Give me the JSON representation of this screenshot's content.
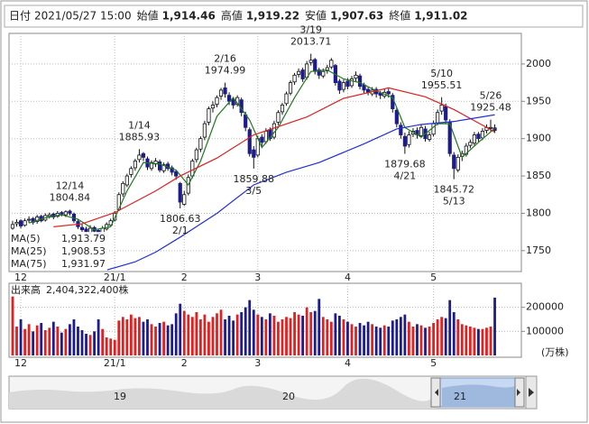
{
  "header": {
    "fields": [
      {
        "label": "日付",
        "value": "2021/05/27 15:00"
      },
      {
        "label": "始値",
        "value": "1,914.46"
      },
      {
        "label": "高値",
        "value": "1,919.22",
        "color": "#e00000"
      },
      {
        "label": "安値",
        "value": "1,907.63",
        "color": "#138a13"
      },
      {
        "label": "終値",
        "value": "1,911.02"
      }
    ]
  },
  "chart_data": [
    {
      "type": "candlestick",
      "ylim": [
        1722,
        2041
      ],
      "yticks": [
        1750,
        1800,
        1850,
        1900,
        1950,
        2000
      ],
      "grid": true,
      "up_color": "#ffffff",
      "down_color": "#1c1c8c",
      "legend": "bottom-left",
      "categories": [
        null,
        null,
        "12",
        null,
        null,
        null,
        null,
        null,
        null,
        null,
        null,
        null,
        null,
        null,
        null,
        null,
        null,
        null,
        null,
        null,
        null,
        null,
        null,
        null,
        null,
        "21/1",
        null,
        null,
        null,
        null,
        null,
        null,
        null,
        null,
        null,
        null,
        null,
        null,
        null,
        null,
        null,
        null,
        "2",
        null,
        null,
        null,
        null,
        null,
        null,
        null,
        null,
        null,
        null,
        null,
        null,
        null,
        null,
        null,
        null,
        null,
        "3",
        null,
        null,
        null,
        null,
        null,
        null,
        null,
        null,
        null,
        null,
        null,
        null,
        null,
        null,
        null,
        null,
        null,
        null,
        null,
        null,
        null,
        "4",
        null,
        null,
        null,
        null,
        null,
        null,
        null,
        null,
        null,
        null,
        null,
        null,
        null,
        null,
        null,
        null,
        null,
        null,
        null,
        null,
        "5",
        null,
        null,
        null,
        null,
        null,
        null,
        null,
        null,
        null,
        null,
        null,
        null,
        null,
        null,
        null
      ],
      "ohlc": [
        [
          1780,
          1790,
          1778,
          1785
        ],
        [
          1786,
          1792,
          1782,
          1788
        ],
        [
          1790,
          1792,
          1780,
          1783
        ],
        [
          1784,
          1793,
          1782,
          1790
        ],
        [
          1791,
          1796,
          1787,
          1792
        ],
        [
          1793,
          1795,
          1785,
          1788
        ],
        [
          1789,
          1798,
          1786,
          1795
        ],
        [
          1796,
          1798,
          1788,
          1790
        ],
        [
          1791,
          1800,
          1789,
          1797
        ],
        [
          1796,
          1801,
          1793,
          1798
        ],
        [
          1799,
          1801,
          1792,
          1795
        ],
        [
          1796,
          1803,
          1794,
          1800
        ],
        [
          1801,
          1803,
          1796,
          1799
        ],
        [
          1798,
          1804,
          1795,
          1802
        ],
        [
          1803,
          1804.84,
          1797,
          1800
        ],
        [
          1799,
          1801,
          1787,
          1790
        ],
        [
          1789,
          1792,
          1779,
          1782
        ],
        [
          1781,
          1786,
          1775,
          1778
        ],
        [
          1779,
          1782,
          1771,
          1775
        ],
        [
          1774,
          1784,
          1772,
          1780
        ],
        [
          1781,
          1783,
          1773,
          1776
        ],
        [
          1777,
          1779,
          1768,
          1772
        ],
        [
          1771,
          1783,
          1770,
          1780
        ],
        [
          1779,
          1788,
          1777,
          1785
        ],
        [
          1784,
          1793,
          1782,
          1790
        ],
        [
          1791,
          1803,
          1789,
          1800
        ],
        [
          1805,
          1828,
          1803,
          1825
        ],
        [
          1826,
          1843,
          1822,
          1840
        ],
        [
          1838,
          1853,
          1835,
          1850
        ],
        [
          1852,
          1863,
          1848,
          1860
        ],
        [
          1861,
          1873,
          1857,
          1870
        ],
        [
          1872,
          1885.93,
          1868,
          1878
        ],
        [
          1880,
          1882,
          1870,
          1875
        ],
        [
          1873,
          1876,
          1858,
          1862
        ],
        [
          1860,
          1871,
          1857,
          1868
        ],
        [
          1866,
          1874,
          1862,
          1870
        ],
        [
          1869,
          1872,
          1855,
          1858
        ],
        [
          1857,
          1868,
          1854,
          1865
        ],
        [
          1866,
          1869,
          1857,
          1860
        ],
        [
          1861,
          1864,
          1851,
          1855
        ],
        [
          1856,
          1858,
          1845,
          1850
        ],
        [
          1840,
          1842,
          1806.63,
          1815
        ],
        [
          1812,
          1830,
          1810,
          1825
        ],
        [
          1827,
          1852,
          1824,
          1848
        ],
        [
          1850,
          1873,
          1847,
          1870
        ],
        [
          1872,
          1888,
          1868,
          1885
        ],
        [
          1886,
          1903,
          1882,
          1900
        ],
        [
          1902,
          1924,
          1898,
          1920
        ],
        [
          1922,
          1943,
          1918,
          1940
        ],
        [
          1941,
          1950,
          1935,
          1945
        ],
        [
          1946,
          1958,
          1942,
          1955
        ],
        [
          1957,
          1968,
          1952,
          1965
        ],
        [
          1968,
          1974.99,
          1955,
          1960
        ],
        [
          1958,
          1962,
          1945,
          1950
        ],
        [
          1952,
          1956,
          1940,
          1945
        ],
        [
          1946,
          1958,
          1943,
          1955
        ],
        [
          1952,
          1955,
          1930,
          1935
        ],
        [
          1932,
          1936,
          1910,
          1915
        ],
        [
          1912,
          1915,
          1876,
          1880
        ],
        [
          1885,
          1890,
          1859.88,
          1875
        ],
        [
          1878,
          1904,
          1875,
          1900
        ],
        [
          1902,
          1906,
          1890,
          1895
        ],
        [
          1896,
          1914,
          1893,
          1910
        ],
        [
          1912,
          1915,
          1897,
          1900
        ],
        [
          1902,
          1924,
          1899,
          1920
        ],
        [
          1922,
          1938,
          1918,
          1935
        ],
        [
          1936,
          1948,
          1932,
          1945
        ],
        [
          1947,
          1963,
          1944,
          1960
        ],
        [
          1961,
          1978,
          1958,
          1975
        ],
        [
          1976,
          1988,
          1972,
          1985
        ],
        [
          1986,
          1994,
          1982,
          1990
        ],
        [
          1992,
          1995,
          1976,
          1980
        ],
        [
          1982,
          2004,
          1979,
          2000
        ],
        [
          2002,
          2013.71,
          1998,
          2005
        ],
        [
          2006,
          2008,
          1986,
          1990
        ],
        [
          1992,
          1995,
          1980,
          1985
        ],
        [
          1984,
          1994,
          1981,
          1990
        ],
        [
          1991,
          1999,
          1987,
          1995
        ],
        [
          1996,
          2008,
          1993,
          2005
        ],
        [
          1998,
          2000,
          1971,
          1975
        ],
        [
          1977,
          1980,
          1960,
          1965
        ],
        [
          1966,
          1979,
          1962,
          1975
        ],
        [
          1977,
          1981,
          1966,
          1970
        ],
        [
          1971,
          1984,
          1968,
          1980
        ],
        [
          1981,
          1990,
          1977,
          1985
        ],
        [
          1984,
          1987,
          1966,
          1970
        ],
        [
          1972,
          1975,
          1961,
          1965
        ],
        [
          1966,
          1970,
          1958,
          1962
        ],
        [
          1960,
          1969,
          1957,
          1965
        ],
        [
          1966,
          1969,
          1955,
          1960
        ],
        [
          1961,
          1964,
          1953,
          1958
        ],
        [
          1957,
          1966,
          1954,
          1962
        ],
        [
          1963,
          1967,
          1955,
          1960
        ],
        [
          1958,
          1961,
          1935,
          1940
        ],
        [
          1938,
          1942,
          1915,
          1920
        ],
        [
          1918,
          1922,
          1900,
          1905
        ],
        [
          1903,
          1908,
          1879.68,
          1890
        ],
        [
          1892,
          1910,
          1888,
          1905
        ],
        [
          1906,
          1914,
          1902,
          1910
        ],
        [
          1911,
          1915,
          1900,
          1905
        ],
        [
          1904,
          1919,
          1901,
          1915
        ],
        [
          1913,
          1917,
          1896,
          1900
        ],
        [
          1899,
          1909,
          1896,
          1905
        ],
        [
          1906,
          1924,
          1903,
          1920
        ],
        [
          1921,
          1939,
          1918,
          1935
        ],
        [
          1937,
          1955.51,
          1932,
          1945
        ],
        [
          1943,
          1947,
          1920,
          1925
        ],
        [
          1922,
          1926,
          1876,
          1880
        ],
        [
          1878,
          1882,
          1845.72,
          1860
        ],
        [
          1858,
          1879,
          1855,
          1875
        ],
        [
          1876,
          1884,
          1870,
          1880
        ],
        [
          1879,
          1894,
          1876,
          1890
        ],
        [
          1891,
          1899,
          1887,
          1895
        ],
        [
          1894,
          1909,
          1891,
          1905
        ],
        [
          1906,
          1909,
          1896,
          1900
        ],
        [
          1901,
          1914,
          1898,
          1910
        ],
        [
          1911,
          1919,
          1907,
          1915
        ],
        [
          1914,
          1925.48,
          1910,
          1915
        ],
        [
          1914.46,
          1919.22,
          1907.63,
          1911.02
        ]
      ],
      "series": [
        {
          "name": "MA(5)",
          "color": "#1e7a1e",
          "x": [
            4,
            8,
            12,
            16,
            20,
            24,
            28,
            32,
            36,
            40,
            43,
            46,
            50,
            54,
            58,
            61,
            65,
            69,
            73,
            77,
            81,
            85,
            89,
            93,
            96,
            100,
            104,
            107,
            110,
            114,
            118
          ],
          "values": [
            1787,
            1794,
            1798,
            1792,
            1778,
            1782,
            1830,
            1868,
            1866,
            1858,
            1838,
            1870,
            1930,
            1955,
            1925,
            1888,
            1915,
            1955,
            1990,
            1992,
            1980,
            1975,
            1964,
            1955,
            1915,
            1902,
            1920,
            1920,
            1875,
            1895,
            1913.79
          ],
          "value_labels": [
            null,
            null,
            null,
            null,
            null,
            null,
            null,
            null,
            null,
            null,
            null,
            null,
            null,
            null,
            null,
            null,
            null,
            null,
            null,
            null,
            null,
            null,
            null,
            null,
            null,
            null,
            null,
            null,
            null,
            null,
            "1,913.79"
          ]
        },
        {
          "name": "MA(25)",
          "color": "#e02020",
          "x": [
            10,
            17,
            25,
            35,
            41,
            50,
            59,
            72,
            81,
            92,
            101,
            108,
            117,
            118
          ],
          "values": [
            1782,
            1786,
            1801,
            1830,
            1850,
            1874,
            1905,
            1929,
            1954,
            1968,
            1956,
            1939,
            1912,
            1908.53
          ],
          "value_labels": [
            null,
            null,
            null,
            null,
            null,
            null,
            null,
            null,
            null,
            null,
            null,
            null,
            null,
            "1,908.53"
          ]
        },
        {
          "name": "MA(75)",
          "color": "#1f2fd8",
          "x": [
            23,
            30,
            35,
            41,
            50,
            59,
            67,
            75,
            86,
            94,
            100,
            108,
            118
          ],
          "values": [
            1724,
            1735,
            1748,
            1768,
            1800,
            1838,
            1855,
            1868,
            1893,
            1913,
            1919,
            1923,
            1931.97
          ],
          "value_labels": [
            null,
            null,
            null,
            null,
            null,
            null,
            null,
            null,
            null,
            null,
            null,
            null,
            "1,931.97"
          ]
        }
      ],
      "annotations": [
        {
          "date": "12/14",
          "value": 1804.84,
          "position": "above"
        },
        {
          "date": "1/14",
          "value": 1885.93,
          "position": "above"
        },
        {
          "date": "2/1",
          "value": 1806.63,
          "position": "below"
        },
        {
          "date": "2/16",
          "value": 1974.99,
          "position": "above"
        },
        {
          "date": "3/5",
          "value": 1859.88,
          "position": "below"
        },
        {
          "date": "3/19",
          "value": 2013.71,
          "position": "above"
        },
        {
          "date": "4/21",
          "value": 1879.68,
          "position": "below"
        },
        {
          "date": "5/10",
          "value": 1955.51,
          "position": "above"
        },
        {
          "date": "5/13",
          "value": 1845.72,
          "position": "below"
        },
        {
          "date": "5/26",
          "value": 1925.48,
          "position": "above"
        }
      ]
    },
    {
      "type": "bar",
      "title": "出来高",
      "total_label": "2,404,322,400株",
      "unit": "(万株)",
      "up_color": "#e32020",
      "down_color": "#1c1c8c",
      "ylim": [
        0,
        300000
      ],
      "yticks": [
        100000,
        200000
      ],
      "grid": true,
      "values": [
        245000,
        120000,
        150000,
        110000,
        130000,
        100000,
        125000,
        135000,
        105000,
        115000,
        140000,
        120000,
        95000,
        110000,
        130000,
        150000,
        120000,
        105000,
        90000,
        85000,
        100000,
        150000,
        110000,
        75000,
        70000,
        65000,
        145000,
        160000,
        150000,
        170000,
        155000,
        160000,
        140000,
        150000,
        130000,
        120000,
        135000,
        140000,
        125000,
        130000,
        175000,
        215000,
        185000,
        170000,
        160000,
        180000,
        150000,
        170000,
        140000,
        160000,
        175000,
        190000,
        150000,
        165000,
        145000,
        170000,
        180000,
        200000,
        230000,
        190000,
        170000,
        160000,
        150000,
        175000,
        165000,
        140000,
        150000,
        160000,
        155000,
        180000,
        170000,
        165000,
        200000,
        180000,
        185000,
        235000,
        160000,
        150000,
        140000,
        175000,
        165000,
        150000,
        140000,
        130000,
        120000,
        135000,
        125000,
        140000,
        130000,
        120000,
        115000,
        125000,
        120000,
        145000,
        150000,
        160000,
        170000,
        140000,
        120000,
        130000,
        125000,
        115000,
        120000,
        135000,
        150000,
        160000,
        155000,
        230000,
        180000,
        150000,
        130000,
        125000,
        120000,
        115000,
        110000,
        110000,
        115000,
        120000,
        240432.24
      ]
    }
  ],
  "navigator": {
    "labels": [
      "19",
      "20",
      "21"
    ]
  }
}
